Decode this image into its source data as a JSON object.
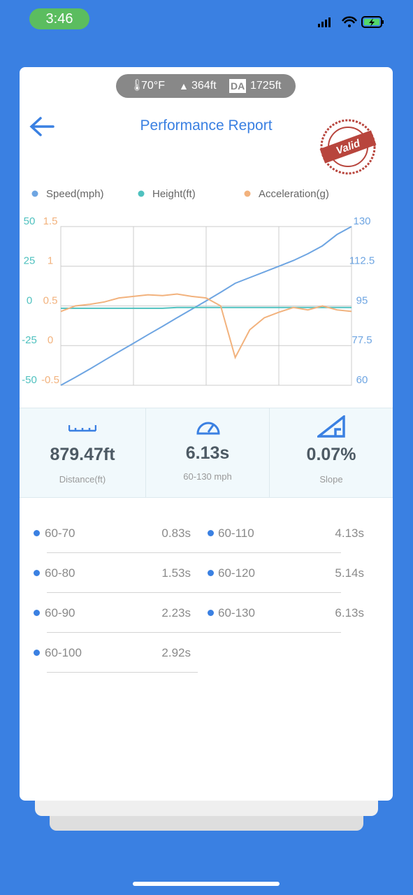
{
  "status": {
    "time": "3:46"
  },
  "conditions": {
    "temperature": "70°F",
    "altitude": "364ft",
    "da_badge": "DA",
    "density_altitude": "1725ft"
  },
  "header": {
    "title": "Performance Report",
    "stamp": "Valid"
  },
  "chart_data": {
    "type": "line",
    "series": [
      {
        "name": "Speed(mph)",
        "color": "#6ea5e2",
        "axis": "y2",
        "values": [
          60,
          63.5,
          67.2,
          71,
          74.8,
          78.5,
          82.3,
          86,
          89.8,
          93.5,
          97.2,
          101,
          105,
          107.5,
          110,
          112.5,
          115,
          118,
          121.5,
          126.5,
          130
        ]
      },
      {
        "name": "Height(ft)",
        "color": "#4fc1bf",
        "axis": "y",
        "values": [
          -1.5,
          -1.5,
          -1.5,
          -1.5,
          -1.5,
          -1.5,
          -1.5,
          -1.5,
          -1,
          -1,
          -1,
          -1,
          -1,
          -1,
          -1,
          -1,
          -1,
          -1,
          -1,
          -1,
          -1
        ]
      },
      {
        "name": "Acceleration(g)",
        "color": "#f2b27d",
        "axis": "y3",
        "values": [
          0.43,
          0.5,
          0.52,
          0.55,
          0.6,
          0.62,
          0.64,
          0.63,
          0.65,
          0.62,
          0.6,
          0.5,
          -0.15,
          0.2,
          0.35,
          0.42,
          0.48,
          0.45,
          0.5,
          0.45,
          0.43
        ]
      }
    ],
    "ylim": [
      -50,
      50
    ],
    "yticks": [
      50,
      25,
      0,
      -25,
      -50
    ],
    "y2lim": [
      60,
      130
    ],
    "y2ticks": [
      130,
      112.5,
      95,
      77.5,
      60
    ],
    "y3lim": [
      -0.5,
      1.5
    ],
    "y3ticks": [
      1.5,
      1,
      0.5,
      0,
      -0.5
    ],
    "grid": true
  },
  "stats": [
    {
      "value": "879.47ft",
      "label": "Distance(ft)"
    },
    {
      "value": "6.13s",
      "label": "60-130 mph"
    },
    {
      "value": "0.07%",
      "label": "Slope"
    }
  ],
  "splits": [
    {
      "range": "60-70",
      "time": "0.83s"
    },
    {
      "range": "60-80",
      "time": "1.53s"
    },
    {
      "range": "60-90",
      "time": "2.23s"
    },
    {
      "range": "60-100",
      "time": "2.92s"
    },
    {
      "range": "60-110",
      "time": "4.13s"
    },
    {
      "range": "60-120",
      "time": "5.14s"
    },
    {
      "range": "60-130",
      "time": "6.13s"
    }
  ]
}
